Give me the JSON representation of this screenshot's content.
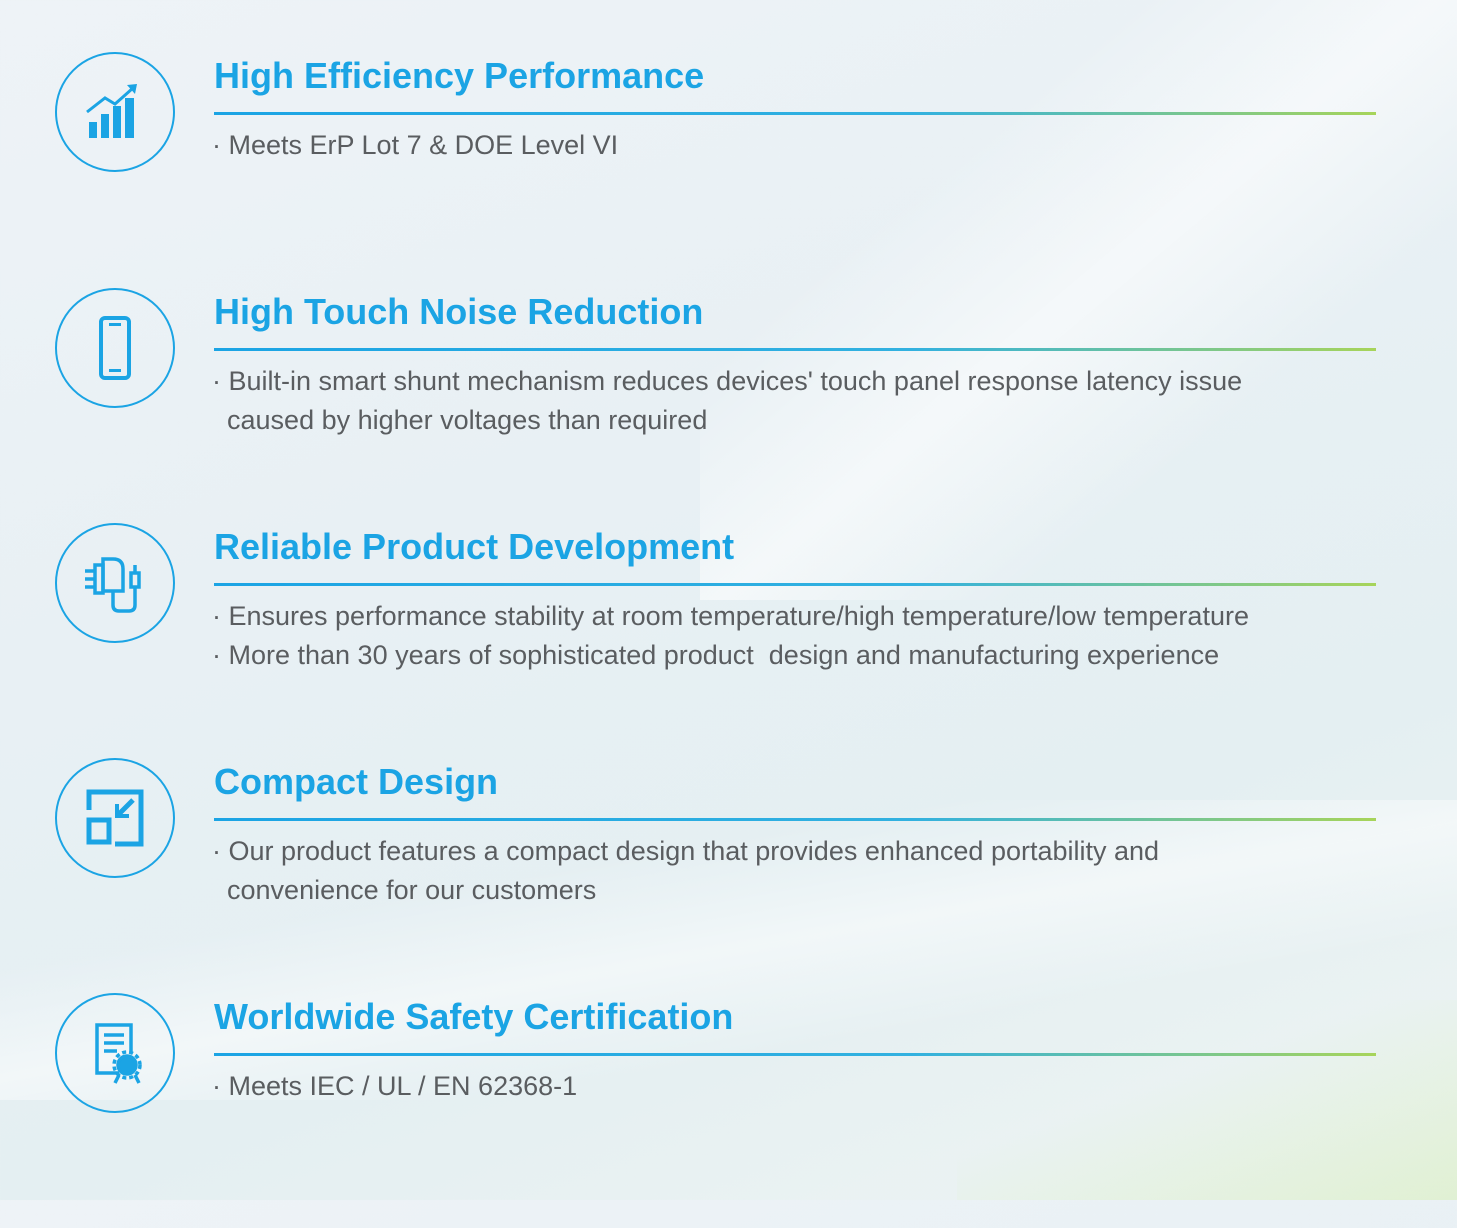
{
  "accent_color": "#1ba4e4",
  "rule_end_color": "#a7d45a",
  "features": [
    {
      "icon": "bar-chart-growth-icon",
      "title": "High Efficiency Performance",
      "bullets": [
        "· Meets ErP Lot 7 & DOE Level VI"
      ]
    },
    {
      "icon": "smartphone-icon",
      "title": "High Touch Noise Reduction",
      "bullets": [
        "· Built-in smart shunt mechanism reduces devices' touch panel response latency issue",
        "  caused by higher voltages than required"
      ]
    },
    {
      "icon": "power-adapter-icon",
      "title": "Reliable Product Development",
      "bullets": [
        "· Ensures performance stability at room temperature/high temperature/low temperature",
        "· More than 30 years of sophisticated product  design and manufacturing experience"
      ]
    },
    {
      "icon": "compact-resize-icon",
      "title": "Compact Design",
      "bullets": [
        "· Our product features a compact design that provides enhanced portability and",
        "  convenience for our customers"
      ]
    },
    {
      "icon": "certificate-icon",
      "title": "Worldwide Safety Certification",
      "bullets": [
        "· Meets IEC / UL / EN 62368-1"
      ]
    }
  ]
}
